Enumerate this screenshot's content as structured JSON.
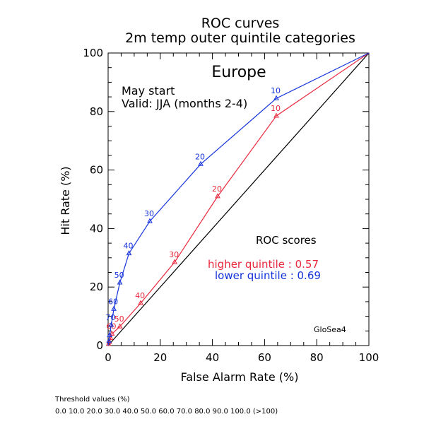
{
  "chart_data": {
    "type": "line",
    "title": "ROC curves",
    "subtitle": "2m temp outer quintile categories",
    "region": "Europe",
    "info_lines": [
      "May start",
      "Valid: JJA (months 2-4)"
    ],
    "xlabel": "False Alarm Rate (%)",
    "ylabel": "Hit Rate (%)",
    "xlim": [
      0,
      100
    ],
    "ylim": [
      0,
      100
    ],
    "x_ticks": [
      "0",
      "20",
      "40",
      "60",
      "80",
      "100"
    ],
    "y_ticks": [
      "0",
      "20",
      "40",
      "60",
      "80",
      "100"
    ],
    "grid": false,
    "scores_title": "ROC scores",
    "series": [
      {
        "name": "higher quintile",
        "score_text": "higher quintile : 0.57",
        "color": "#e8283c",
        "x": [
          0,
          0.2,
          0.5,
          1.0,
          1.5,
          4.5,
          12.5,
          25.5,
          42.0,
          64.5,
          100
        ],
        "y": [
          0,
          0.5,
          1.2,
          2.5,
          4.0,
          6.5,
          14.5,
          28.5,
          51.0,
          78.5,
          100
        ],
        "labels": [
          "",
          "",
          "",
          "",
          "60",
          "50",
          "40",
          "30",
          "20",
          "10",
          ""
        ]
      },
      {
        "name": "lower quintile",
        "score_text": "lower quintile : 0.69",
        "color": "#1432dc",
        "x": [
          0,
          0.3,
          0.6,
          1.2,
          2.2,
          4.5,
          8.0,
          16.0,
          35.5,
          64.5,
          100
        ],
        "y": [
          0,
          1.5,
          3.5,
          7.0,
          12.5,
          21.5,
          31.5,
          42.5,
          62.0,
          84.5,
          100
        ],
        "labels": [
          "",
          "",
          "",
          "70",
          "60",
          "50",
          "40",
          "30",
          "20",
          "10",
          ""
        ]
      }
    ],
    "diagonal_color": "#000000",
    "model_label": "GloSea4"
  },
  "footer": {
    "threshold_title": "Threshold values (%)",
    "threshold_values": "0.0 10.0 20.0 30.0 40.0 50.0 60.0 70.0 80.0 90.0 100.0 (>100)"
  }
}
